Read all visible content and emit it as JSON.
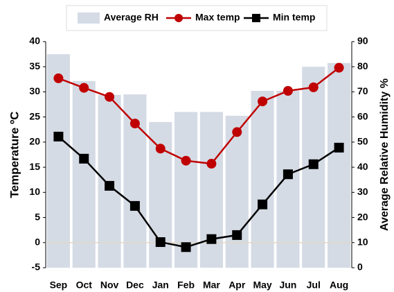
{
  "chart_data": {
    "type": "combo",
    "categories": [
      "Sep",
      "Oct",
      "Nov",
      "Dec",
      "Jan",
      "Feb",
      "Mar",
      "Apr",
      "May",
      "Jun",
      "Jul",
      "Aug"
    ],
    "series": [
      {
        "name": "Average RH",
        "type": "bar",
        "axis": "y2",
        "color": "#d5dbe5",
        "values": [
          85,
          74.3,
          68.8,
          69,
          58,
          62,
          62,
          60.5,
          70.4,
          70.4,
          80,
          81.5
        ]
      },
      {
        "name": "Max temp",
        "type": "line",
        "marker": "circle",
        "color": "#c00000",
        "values": [
          32.7,
          30.8,
          29,
          23.7,
          18.7,
          16.3,
          15.7,
          22,
          28.1,
          30.2,
          30.9,
          34.8
        ]
      },
      {
        "name": "Min temp",
        "type": "line",
        "marker": "square",
        "color": "#000000",
        "values": [
          21.1,
          16.7,
          11.3,
          7.3,
          0.1,
          -0.9,
          0.7,
          1.5,
          7.6,
          13.6,
          15.6,
          18.9
        ]
      }
    ],
    "ylabel": "Temperature ºC",
    "y2label": "Average Relative Humidity %",
    "ylim": [
      -5,
      40
    ],
    "yticks": [
      -5,
      0,
      5,
      10,
      15,
      20,
      25,
      30,
      35,
      40
    ],
    "y2lim": [
      0,
      90
    ],
    "y2ticks": [
      0,
      10,
      20,
      30,
      40,
      50,
      60,
      70,
      80,
      90
    ],
    "grid": false,
    "legend": "top"
  }
}
